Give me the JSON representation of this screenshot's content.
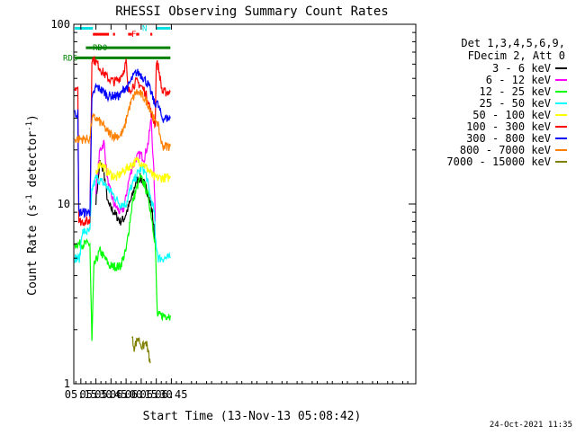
{
  "chart_data": {
    "type": "line",
    "title": "RHESSI Observing Summary Count Rates",
    "xlabel": "Start Time (13-Nov-13 05:08:42)",
    "ylabel_main": "Count Rate (s",
    "ylabel_sup": "-1",
    "ylabel_tail": " detector",
    "ylabel_sup2": "-1",
    "ylabel_close": ")",
    "x_unit": "minutes",
    "xlim": [
      308,
      648
    ],
    "ylim": [
      1,
      100
    ],
    "yscale": "log",
    "x_ticks": [
      {
        "value": 315,
        "label": "05:15"
      },
      {
        "value": 330,
        "label": "05:30"
      },
      {
        "value": 345,
        "label": "05:45"
      },
      {
        "value": 360,
        "label": "06:00"
      },
      {
        "value": 375,
        "label": "06:15"
      },
      {
        "value": 390,
        "label": "06:30"
      },
      {
        "value": 405,
        "label": "06:45"
      }
    ],
    "y_ticks": [
      {
        "value": 1,
        "label": "1"
      },
      {
        "value": 10,
        "label": "10"
      },
      {
        "value": 100,
        "label": "100"
      }
    ],
    "legend": {
      "placement": "right",
      "header": [
        "Det 1,3,4,5,6,9,",
        "FDecim 2, Att 0"
      ]
    },
    "flags": [
      {
        "label": "N",
        "color": "#00e0e0",
        "y": 95
      },
      {
        "label": "F",
        "color": "#ff0000",
        "y": 88
      },
      {
        "label": "RD0",
        "color": "#008000",
        "y": 74
      },
      {
        "label": "RD6",
        "color": "#008000",
        "y": 65
      }
    ],
    "flag_segments": [
      {
        "flag": "N",
        "x0": 309,
        "x1": 327
      },
      {
        "flag": "N",
        "x0": 390,
        "x1": 404
      },
      {
        "flag": "F",
        "x0": 327,
        "x1": 343
      },
      {
        "flag": "F",
        "x0": 347,
        "x1": 349
      },
      {
        "flag": "F",
        "x0": 362,
        "x1": 366
      },
      {
        "flag": "F",
        "x0": 370,
        "x1": 373
      },
      {
        "flag": "F",
        "x0": 384,
        "x1": 386
      },
      {
        "flag": "RD0",
        "x0": 320,
        "x1": 326
      },
      {
        "flag": "RD0",
        "x0": 326,
        "x1": 404
      },
      {
        "flag": "RD6",
        "x0": 309,
        "x1": 404
      }
    ],
    "series": [
      {
        "name": "3 - 6 keV",
        "color": "#000000",
        "values": [
          [
            330,
            10.5
          ],
          [
            334,
            17
          ],
          [
            338,
            15
          ],
          [
            342,
            10
          ],
          [
            348,
            9
          ],
          [
            354,
            8
          ],
          [
            358,
            8.3
          ],
          [
            362,
            9.5
          ],
          [
            366,
            11
          ],
          [
            370,
            13.5
          ],
          [
            374,
            14
          ],
          [
            378,
            13
          ],
          [
            382,
            11.5
          ],
          [
            386,
            9
          ],
          [
            389,
            6
          ]
        ]
      },
      {
        "name": "6 - 12 keV",
        "color": "#ff00ff",
        "values": [
          [
            330,
            12
          ],
          [
            334,
            20
          ],
          [
            338,
            22
          ],
          [
            342,
            13
          ],
          [
            348,
            10
          ],
          [
            354,
            9
          ],
          [
            358,
            9.5
          ],
          [
            362,
            13
          ],
          [
            366,
            16
          ],
          [
            370,
            18
          ],
          [
            374,
            19
          ],
          [
            378,
            18
          ],
          [
            382,
            22
          ],
          [
            385,
            30
          ],
          [
            388,
            13
          ],
          [
            389,
            8
          ]
        ]
      },
      {
        "name": "12 - 25 keV",
        "color": "#00ff00",
        "values": [
          [
            309,
            6
          ],
          [
            324,
            6
          ],
          [
            326,
            1.7
          ],
          [
            328,
            4.5
          ],
          [
            334,
            5.5
          ],
          [
            344,
            4.5
          ],
          [
            354,
            4.5
          ],
          [
            360,
            5.5
          ],
          [
            366,
            10
          ],
          [
            370,
            12
          ],
          [
            374,
            14
          ],
          [
            378,
            13
          ],
          [
            382,
            11
          ],
          [
            386,
            8
          ],
          [
            389,
            6
          ],
          [
            391,
            2.4
          ],
          [
            395,
            2.4
          ],
          [
            400,
            2.4
          ],
          [
            404,
            2.4
          ]
        ]
      },
      {
        "name": "25 - 50 keV",
        "color": "#00ffff",
        "values": [
          [
            309,
            5
          ],
          [
            314,
            5
          ],
          [
            316,
            7
          ],
          [
            324,
            7
          ],
          [
            326,
            12
          ],
          [
            330,
            14
          ],
          [
            338,
            13
          ],
          [
            346,
            11.5
          ],
          [
            354,
            10
          ],
          [
            360,
            10
          ],
          [
            364,
            12
          ],
          [
            368,
            13.5
          ],
          [
            372,
            15
          ],
          [
            376,
            16
          ],
          [
            380,
            14.5
          ],
          [
            384,
            11
          ],
          [
            388,
            9
          ],
          [
            389,
            6.5
          ],
          [
            392,
            5
          ],
          [
            398,
            5
          ],
          [
            404,
            5
          ]
        ]
      },
      {
        "name": "50 - 100 keV",
        "color": "#ffff00",
        "values": [
          [
            330,
            15
          ],
          [
            334,
            17
          ],
          [
            342,
            15
          ],
          [
            350,
            14
          ],
          [
            356,
            15
          ],
          [
            362,
            16
          ],
          [
            368,
            17
          ],
          [
            372,
            17.5
          ],
          [
            376,
            17
          ],
          [
            380,
            16
          ],
          [
            384,
            15
          ],
          [
            388,
            14
          ],
          [
            392,
            14
          ],
          [
            398,
            14
          ],
          [
            404,
            14
          ]
        ]
      },
      {
        "name": "100 - 300 keV",
        "color": "#ff0000",
        "values": [
          [
            309,
            45
          ],
          [
            312,
            45
          ],
          [
            313,
            8
          ],
          [
            324,
            8
          ],
          [
            326,
            65
          ],
          [
            330,
            62
          ],
          [
            336,
            55
          ],
          [
            342,
            50
          ],
          [
            348,
            48
          ],
          [
            352,
            49
          ],
          [
            357,
            54
          ],
          [
            360,
            62
          ],
          [
            362,
            42
          ],
          [
            366,
            45
          ],
          [
            370,
            48
          ],
          [
            374,
            46
          ],
          [
            378,
            43
          ],
          [
            382,
            38
          ],
          [
            386,
            30
          ],
          [
            389,
            28
          ],
          [
            390,
            62
          ],
          [
            392,
            58
          ],
          [
            396,
            42
          ],
          [
            404,
            42
          ]
        ]
      },
      {
        "name": "300 - 800 keV",
        "color": "#0000ff",
        "values": [
          [
            309,
            32
          ],
          [
            312,
            32
          ],
          [
            313,
            9
          ],
          [
            324,
            9
          ],
          [
            326,
            38
          ],
          [
            330,
            45
          ],
          [
            336,
            43
          ],
          [
            342,
            40
          ],
          [
            348,
            40
          ],
          [
            354,
            40
          ],
          [
            358,
            44
          ],
          [
            362,
            45
          ],
          [
            366,
            50
          ],
          [
            370,
            54
          ],
          [
            374,
            53
          ],
          [
            378,
            50
          ],
          [
            382,
            46
          ],
          [
            386,
            40
          ],
          [
            389,
            35
          ],
          [
            390,
            38
          ],
          [
            392,
            35
          ],
          [
            396,
            30
          ],
          [
            404,
            30
          ]
        ]
      },
      {
        "name": "800 - 7000 keV",
        "color": "#ff8000",
        "values": [
          [
            309,
            23
          ],
          [
            324,
            23
          ],
          [
            326,
            30
          ],
          [
            330,
            30
          ],
          [
            336,
            28
          ],
          [
            342,
            25
          ],
          [
            348,
            24
          ],
          [
            354,
            24
          ],
          [
            358,
            26
          ],
          [
            362,
            33
          ],
          [
            366,
            38
          ],
          [
            370,
            42
          ],
          [
            374,
            41
          ],
          [
            378,
            39
          ],
          [
            382,
            36
          ],
          [
            386,
            32
          ],
          [
            389,
            28
          ],
          [
            390,
            30
          ],
          [
            392,
            27
          ],
          [
            396,
            21
          ],
          [
            404,
            21
          ]
        ]
      },
      {
        "name": "7000 - 15000 keV",
        "color": "#808000",
        "values": [
          [
            366,
            1.8
          ],
          [
            368,
            1.6
          ],
          [
            372,
            1.8
          ],
          [
            376,
            1.6
          ],
          [
            380,
            1.7
          ],
          [
            384,
            1.3
          ]
        ]
      }
    ],
    "footer_date": "24-Oct-2021 11:35"
  }
}
